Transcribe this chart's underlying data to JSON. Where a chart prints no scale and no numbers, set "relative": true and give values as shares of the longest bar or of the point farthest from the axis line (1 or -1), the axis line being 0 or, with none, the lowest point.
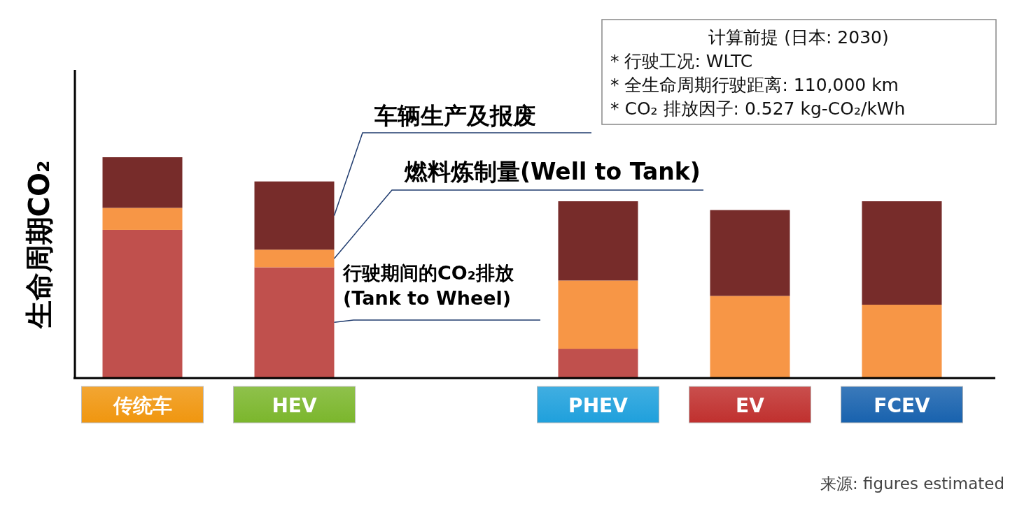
{
  "chart_data": {
    "type": "bar",
    "stacked": true,
    "relative": true,
    "ylabel": "生命周期CO₂",
    "categories": [
      "传统车",
      "HEV",
      null,
      "PHEV",
      "EV",
      "FCEV"
    ],
    "series": [
      {
        "name": "行驶期间的CO₂排放\n(Tank to Wheel)",
        "color": "#c0504d",
        "values": [
          0.67,
          0.5,
          null,
          0.13,
          0,
          0
        ]
      },
      {
        "name": "燃料炼制量(Well to Tank)",
        "color": "#f79646",
        "values": [
          0.1,
          0.08,
          null,
          0.31,
          0.37,
          0.33
        ]
      },
      {
        "name": "车辆生产及报废",
        "color": "#772c2a",
        "values": [
          0.23,
          0.31,
          null,
          0.36,
          0.39,
          0.47
        ]
      }
    ],
    "annotations": [
      "计算前提 (日本: 2030)",
      "* 行驶工况: WLTC",
      "* 全生命周期行驶距离: 110,000 km",
      "* CO₂ 排放因子: 0.527 kg-CO₂/kWh",
      "来源: figures estimated"
    ]
  }
}
